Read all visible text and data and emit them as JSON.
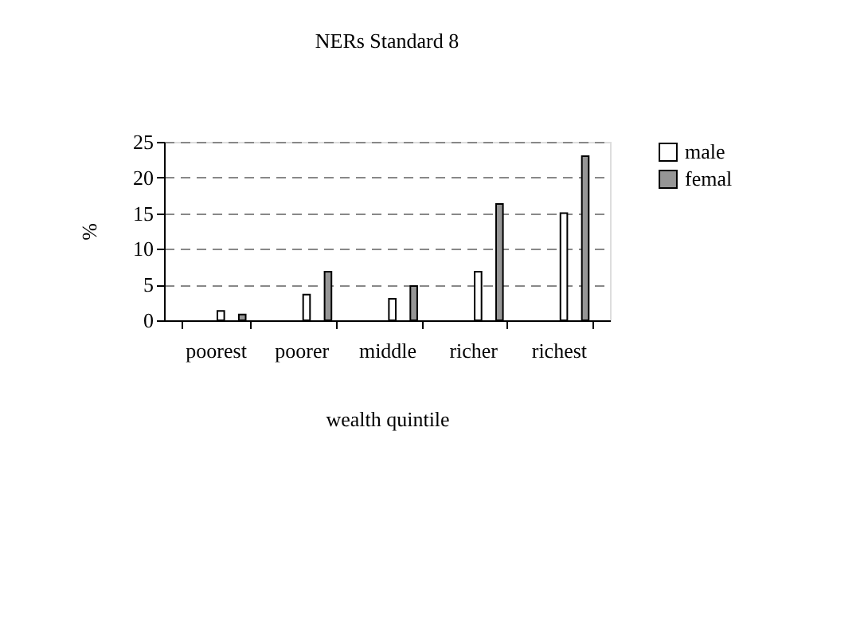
{
  "chart_data": {
    "type": "bar",
    "title": "NERs Standard 8",
    "xlabel": "wealth quintile",
    "ylabel": "%",
    "categories": [
      "poorest",
      "poorer",
      "middle",
      "richer",
      "richest"
    ],
    "series": [
      {
        "name": "male",
        "color": "#ffffff",
        "values": [
          1.3,
          3.6,
          3.0,
          6.8,
          15.0
        ]
      },
      {
        "name": "femal",
        "color": "#969696",
        "values": [
          0.8,
          6.8,
          4.8,
          16.3,
          23.0
        ]
      }
    ],
    "ylim": [
      0,
      25
    ],
    "yticks": [
      0,
      5,
      10,
      15,
      20,
      25
    ],
    "grid": "y",
    "legend": "right"
  }
}
